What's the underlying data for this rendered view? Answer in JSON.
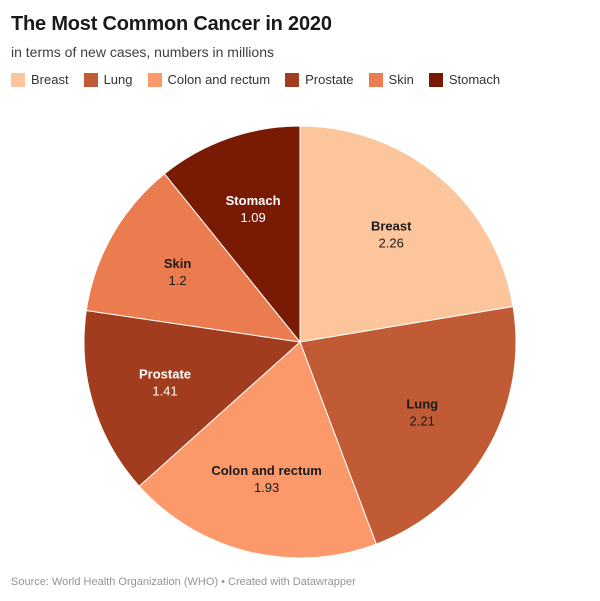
{
  "header": {
    "title": "The Most Common Cancer in 2020",
    "subtitle": "in terms of new cases, numbers in millions"
  },
  "chart_data": {
    "type": "pie",
    "title": "The Most Common Cancer in 2020",
    "subtitle": "in terms of new cases, numbers in millions",
    "unit": "millions of new cases",
    "total": 10.1,
    "start_angle_deg": 0,
    "direction": "clockwise",
    "legend_position": "top",
    "slices": [
      {
        "label": "Breast",
        "value": 2.26,
        "display_value": "2.26",
        "color": "#FCC59C",
        "label_color": "#1A1A1A"
      },
      {
        "label": "Lung",
        "value": 2.21,
        "display_value": "2.21",
        "color": "#C15B35",
        "label_color": "#1A1A1A"
      },
      {
        "label": "Colon and rectum",
        "value": 1.93,
        "display_value": "1.93",
        "color": "#FC996B",
        "label_color": "#1A1A1A"
      },
      {
        "label": "Prostate",
        "value": 1.41,
        "display_value": "1.41",
        "color": "#A13C1F",
        "label_color": "#FFFFFF"
      },
      {
        "label": "Skin",
        "value": 1.2,
        "display_value": "1.2",
        "color": "#EA7C4F",
        "label_color": "#1A1A1A"
      },
      {
        "label": "Stomach",
        "value": 1.09,
        "display_value": "1.09",
        "color": "#791B04",
        "label_color": "#FFFFFF"
      }
    ]
  },
  "footer": {
    "text": "Source: World Health Organization (WHO) • Created with Datawrapper"
  }
}
